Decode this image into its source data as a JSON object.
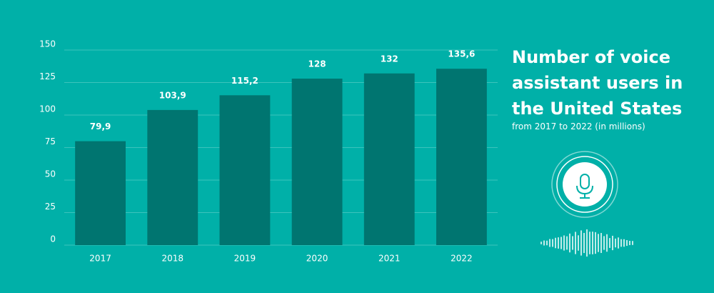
{
  "chart_data": {
    "type": "bar",
    "title": "Number of voice assistant users in the United States",
    "subtitle": "from 2017 to 2022 (in millions)",
    "categories": [
      "2017",
      "2018",
      "2019",
      "2020",
      "2021",
      "2022"
    ],
    "values": [
      79.9,
      103.9,
      115.2,
      128,
      132,
      135.6
    ],
    "value_labels": [
      "79,9",
      "103,9",
      "115,2",
      "128",
      "132",
      "135,6"
    ],
    "color": "#007570",
    "ylim": [
      0,
      150
    ],
    "yticks": [
      0,
      25,
      50,
      75,
      100,
      125,
      150
    ],
    "grid": true
  }
}
